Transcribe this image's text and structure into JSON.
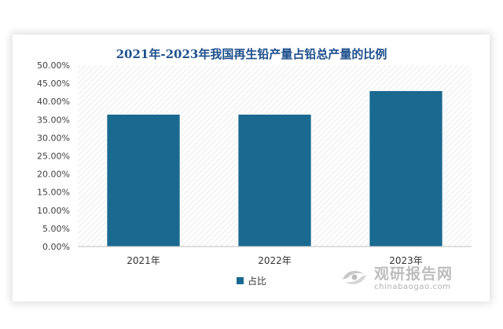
{
  "chart_data": {
    "type": "bar",
    "title": "2021年-2023年我国再生铅产量占铅总产量的比例",
    "categories": [
      "2021年",
      "2022年",
      "2023年"
    ],
    "series": [
      {
        "name": "占比",
        "values": [
          36.5,
          36.5,
          43.0
        ]
      }
    ],
    "ylim": [
      0,
      50
    ],
    "yticks": [
      "0.00%",
      "5.00%",
      "10.00%",
      "15.00%",
      "20.00%",
      "25.00%",
      "30.00%",
      "35.00%",
      "40.00%",
      "45.00%",
      "50.00%"
    ],
    "bar_color": "#1a6990",
    "grid": false,
    "legend_position": "bottom"
  },
  "watermark": {
    "name": "观研报告网",
    "url": "chinabaogao.com"
  }
}
